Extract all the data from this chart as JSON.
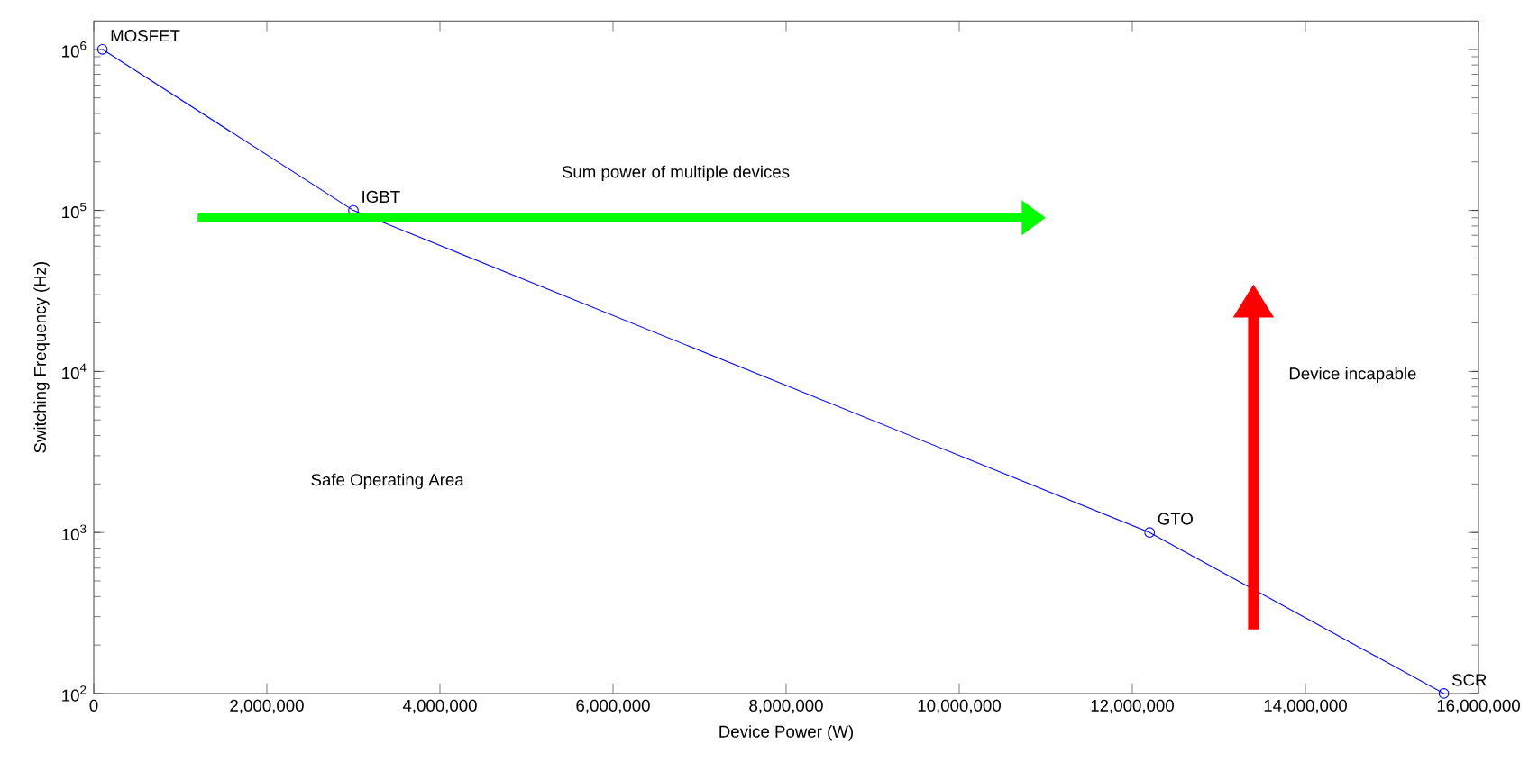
{
  "chart_data": {
    "type": "line",
    "xlabel": "Device Power (W)",
    "ylabel": "Switching Frequency (Hz)",
    "x": [
      100000,
      3000000,
      12200000,
      15600000
    ],
    "series": [
      {
        "color": "#0000ff",
        "values": [
          1000000,
          100000,
          1000,
          100
        ]
      }
    ],
    "marker": "circle",
    "line_style": "solid",
    "log": "y",
    "xlim": [
      0,
      16000000
    ],
    "xticks": [
      {
        "value": 0,
        "label": "0"
      },
      {
        "value": 2000000,
        "label": "2,000,000"
      },
      {
        "value": 4000000,
        "label": "4,000,000"
      },
      {
        "value": 6000000,
        "label": "6,000,000"
      },
      {
        "value": 8000000,
        "label": "8,000,000"
      },
      {
        "value": 10000000,
        "label": "10,000,000"
      },
      {
        "value": 12000000,
        "label": "12,000,000"
      },
      {
        "value": 14000000,
        "label": "14,000,000"
      },
      {
        "value": 16000000,
        "label": "16,000,000"
      }
    ],
    "ylim": [
      100,
      1500000
    ],
    "yticks": [
      {
        "value": 100,
        "label": "10$^{2}$"
      },
      {
        "value": 1000,
        "label": "10$^{3}$"
      },
      {
        "value": 10000,
        "label": "10$^{4}$"
      },
      {
        "value": 100000,
        "label": "10$^{5}$"
      },
      {
        "value": 1000000,
        "label": "10$^{6}$"
      }
    ],
    "annotations": [
      {
        "text": "MOSFET",
        "x": 100000,
        "y": 1000000
      },
      {
        "text": "IGBT",
        "x": 3000000,
        "y": 100000
      },
      {
        "text": "GTO",
        "x": 12200000,
        "y": 1000
      },
      {
        "text": "SCR",
        "x": 15600000,
        "y": 100
      },
      "Sum power of multiple devices",
      "Safe Operating Area",
      "Device incapable"
    ]
  }
}
